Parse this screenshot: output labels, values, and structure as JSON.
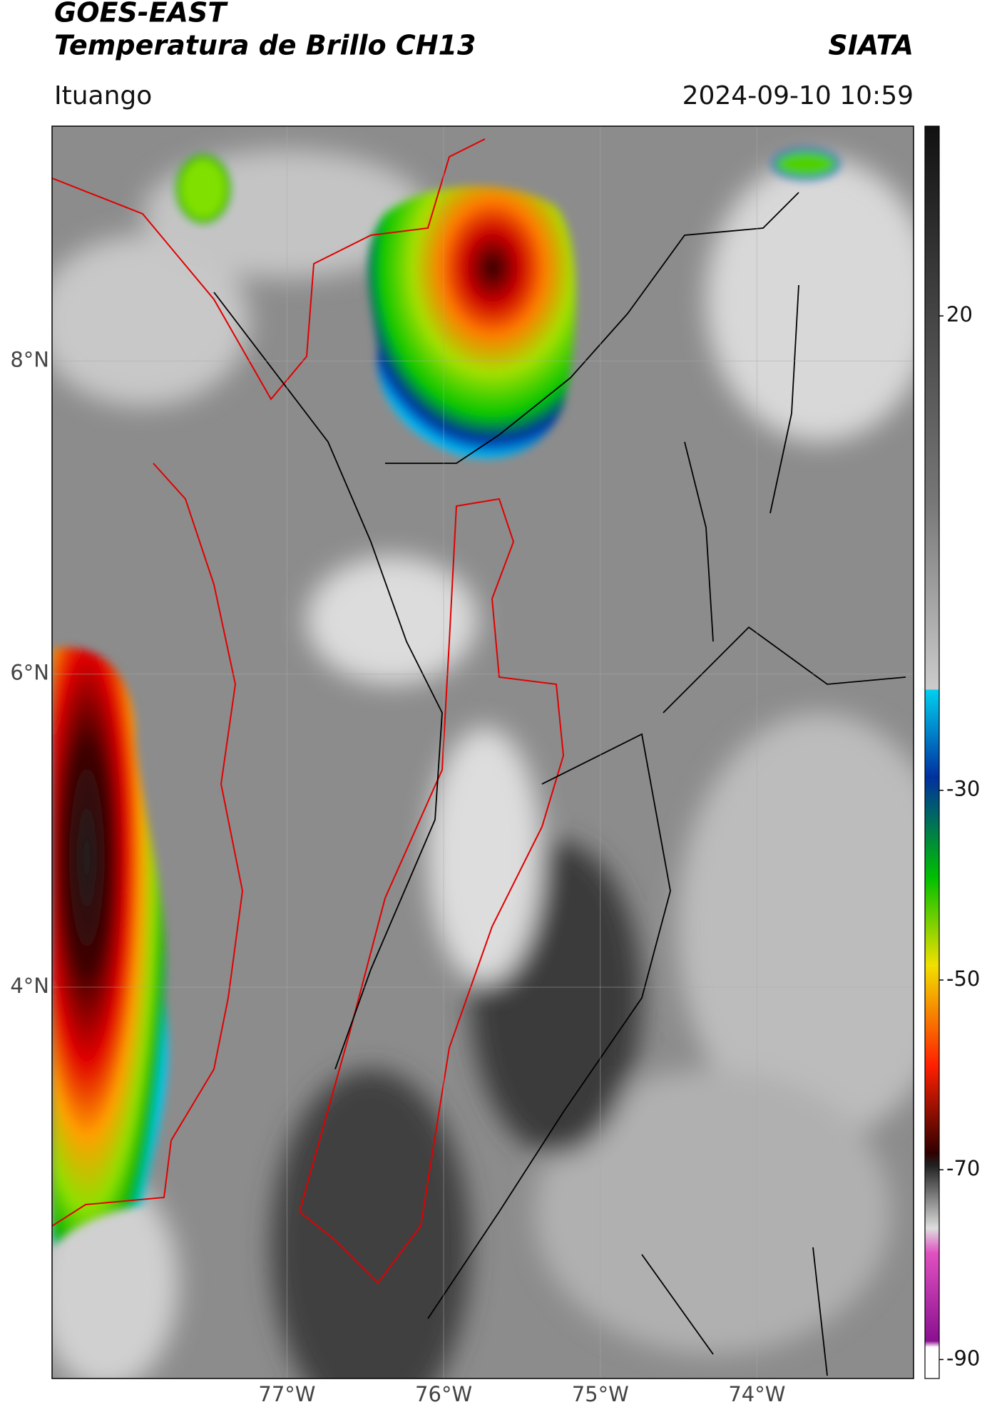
{
  "header": {
    "title_line1": "GOES-EAST",
    "title_line2": "Temperatura de Brillo CH13",
    "brand": "SIATA",
    "location": "Ituango",
    "datetime": "2024-09-10 10:59"
  },
  "map": {
    "lat_range": [
      1.5,
      9.5
    ],
    "lon_range": [
      -78.5,
      -73.0
    ],
    "lat_ticks": [
      {
        "value": 8,
        "label": "8°N"
      },
      {
        "value": 6,
        "label": "6°N"
      },
      {
        "value": 4,
        "label": "4°N"
      }
    ],
    "lon_ticks": [
      {
        "value": -77,
        "label": "77°W"
      },
      {
        "value": -76,
        "label": "76°W"
      },
      {
        "value": -75,
        "label": "75°W"
      },
      {
        "value": -74,
        "label": "74°W"
      }
    ]
  },
  "colorbar": {
    "range": [
      -92,
      40
    ],
    "ticks": [
      20,
      -30,
      -50,
      -70,
      -90
    ]
  }
}
